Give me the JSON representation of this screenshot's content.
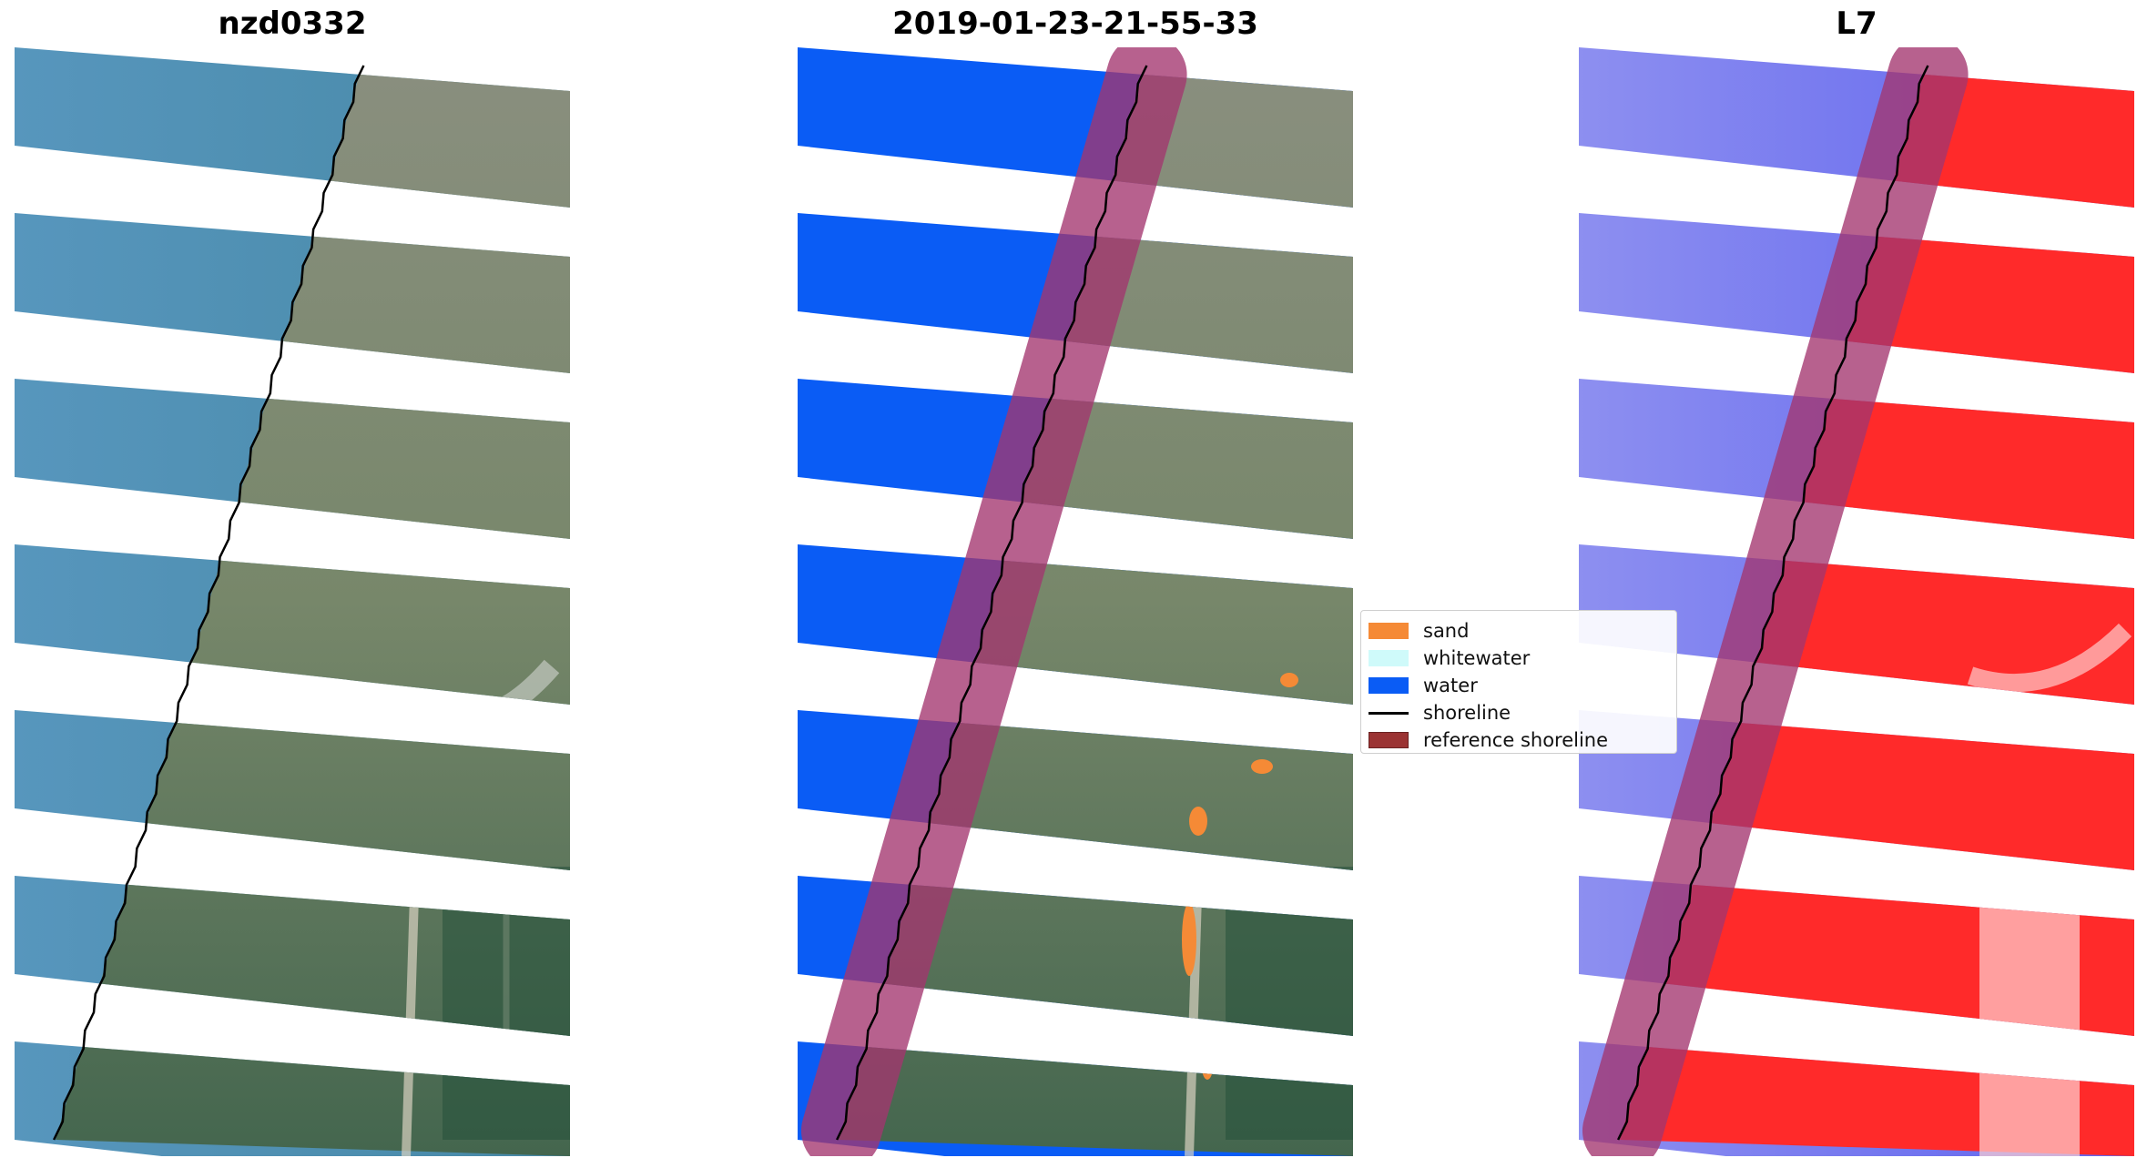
{
  "panels": [
    {
      "title": "nzd0332",
      "style": "rgb"
    },
    {
      "title": "2019-01-23-21-55-33",
      "style": "classified"
    },
    {
      "title": "L7",
      "style": "index"
    }
  ],
  "legend": {
    "items": [
      {
        "label": "sand",
        "color": "#f58a36",
        "kind": "patch"
      },
      {
        "label": "whitewater",
        "color": "#cffafa",
        "kind": "patch"
      },
      {
        "label": "water",
        "color": "#0a5cf5",
        "kind": "patch"
      },
      {
        "label": "shoreline",
        "color": "#000000",
        "kind": "line"
      },
      {
        "label": "reference shoreline",
        "color": "#9b3333",
        "kind": "patch"
      }
    ]
  },
  "colors": {
    "sea_rgb": "#4a8fb0",
    "land_rgb": "#7d8d72",
    "water_class": "#0a5cf5",
    "sand_class": "#f58a36",
    "buffer": "#a3366f",
    "index_blue": "#7c80ef",
    "index_red": "#ff2a2a"
  }
}
